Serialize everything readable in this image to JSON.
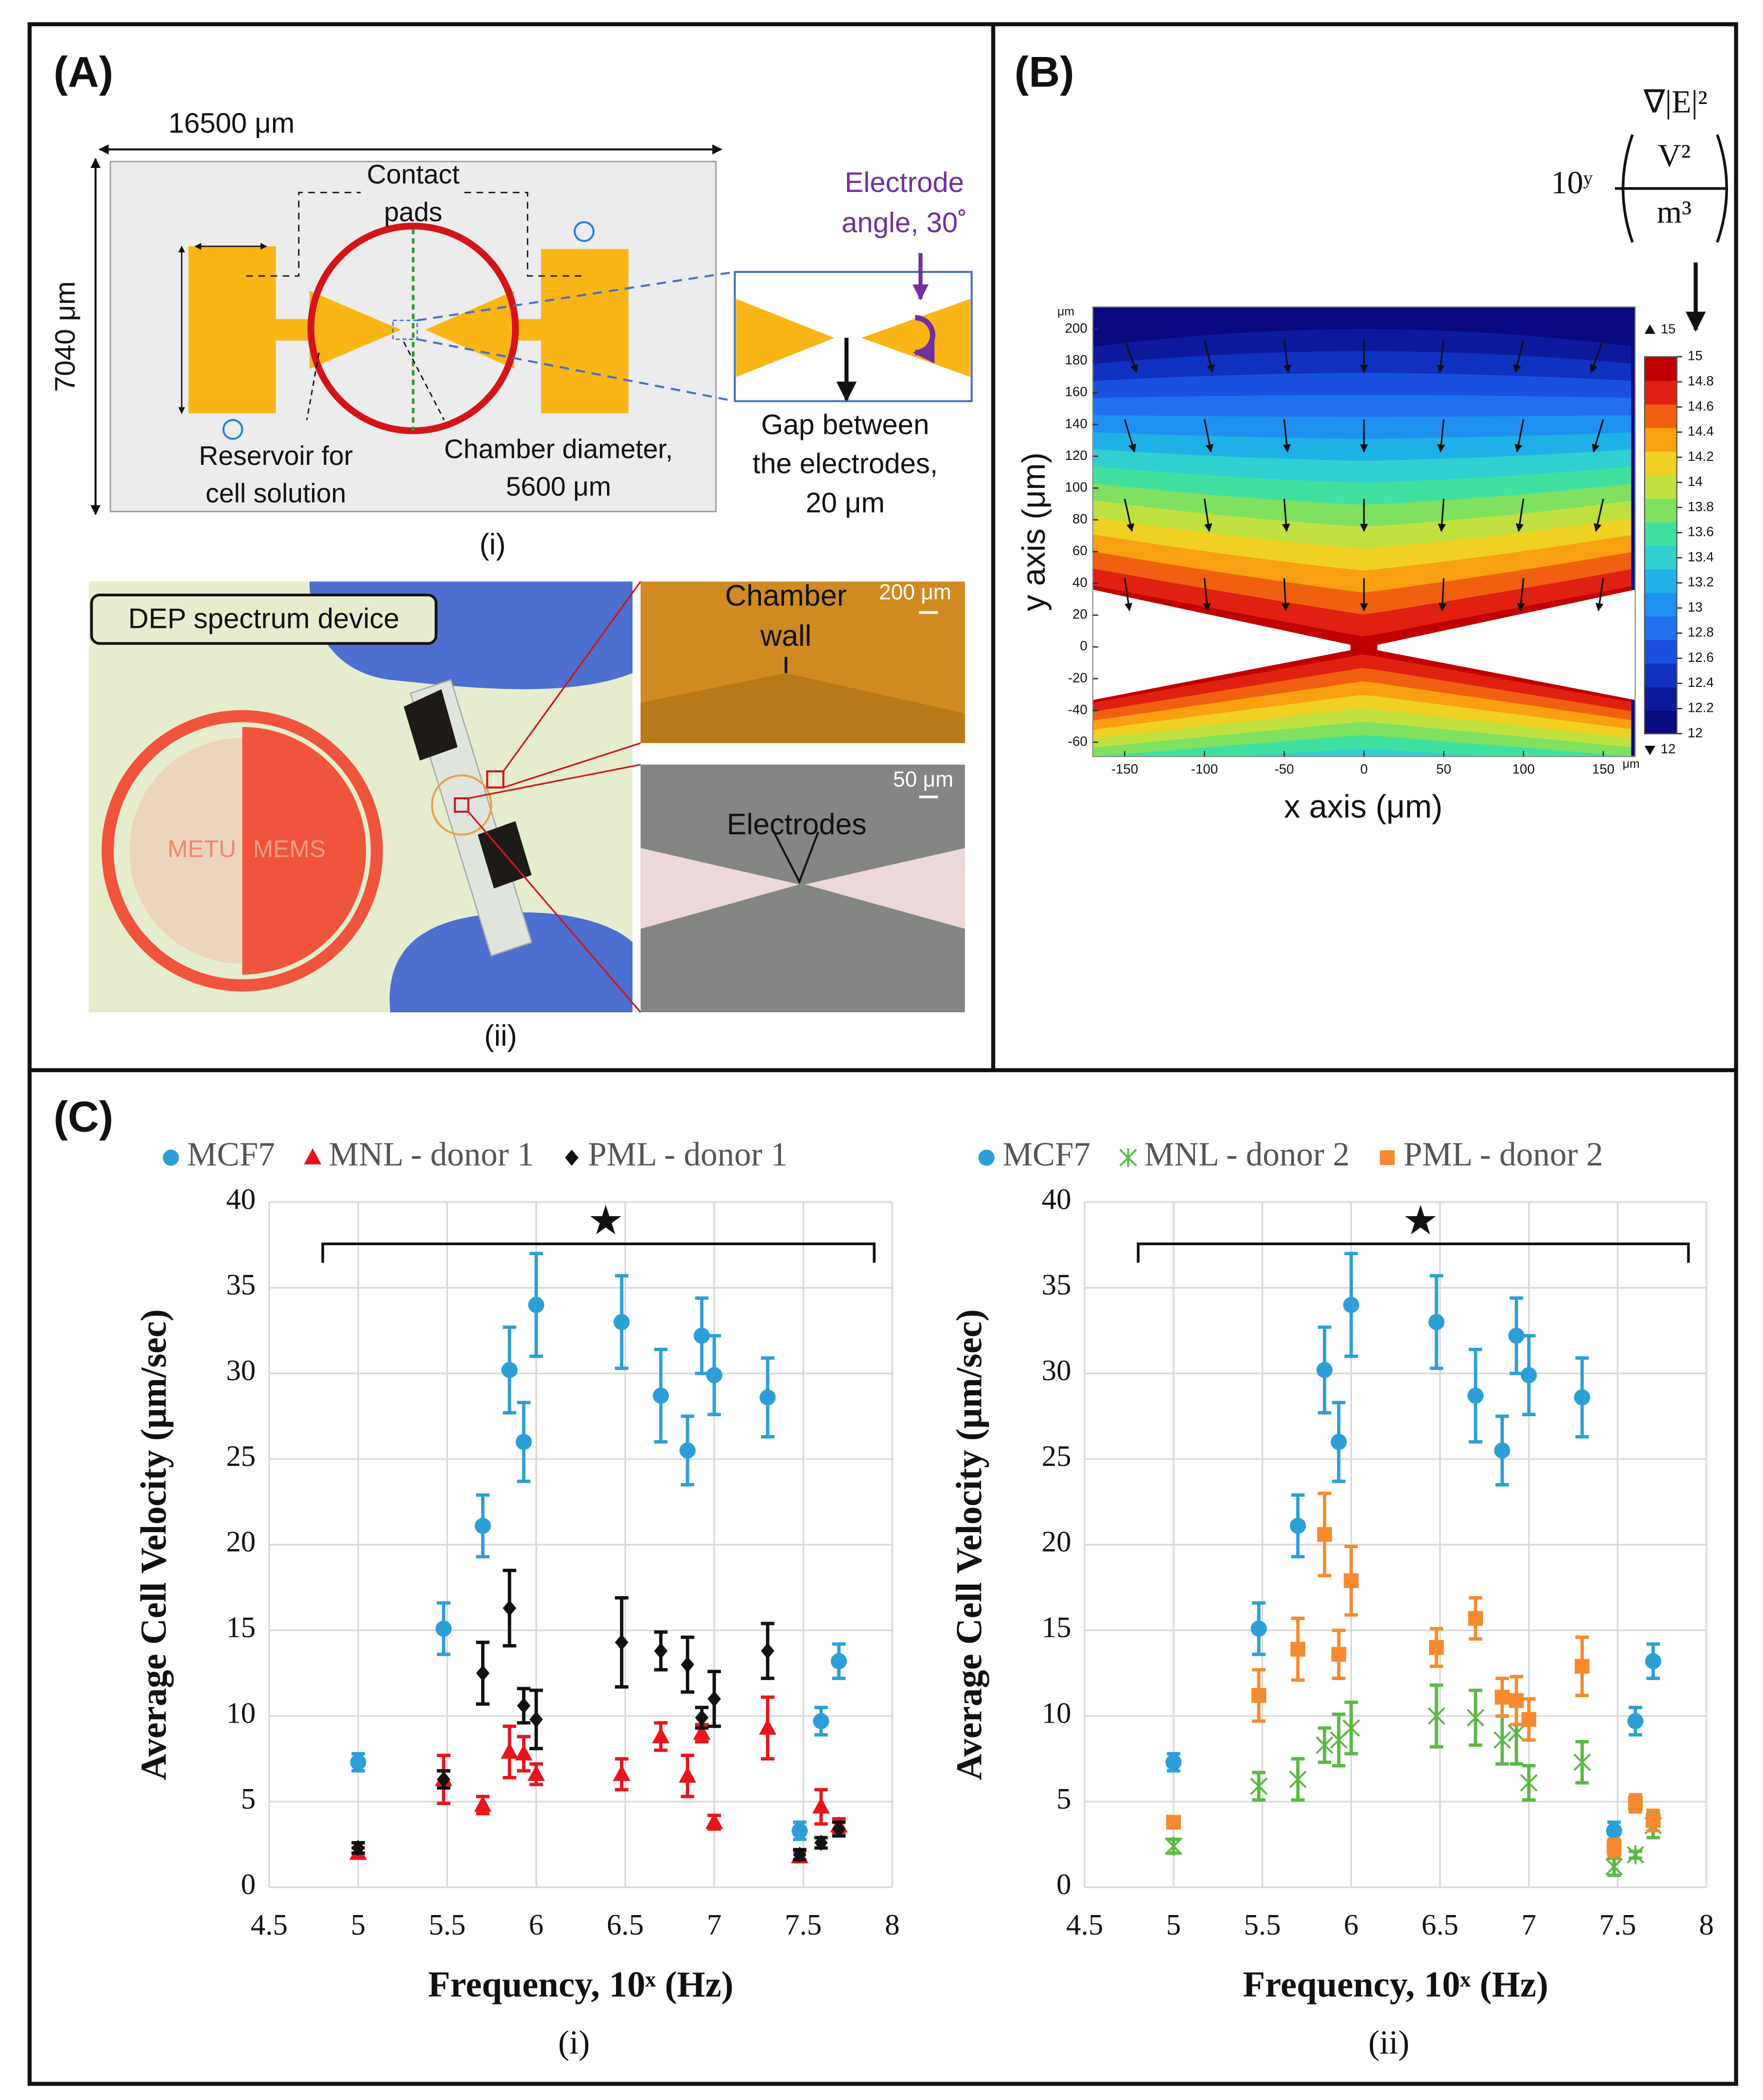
{
  "panel_a": {
    "label": "(A)",
    "width": "16500 μm",
    "height": "7040 μm",
    "contact_pads": [
      "Contact",
      "pads"
    ],
    "electrode_angle": [
      "Electrode",
      "angle, 30˚"
    ],
    "reservoir": [
      "Reservoir for",
      "cell solution"
    ],
    "chamber": [
      "Chamber diameter,",
      "5600 μm"
    ],
    "gap": [
      "Gap between",
      "the electrodes,",
      "20 μm"
    ],
    "sub_i": "(i)",
    "device": "DEP spectrum device",
    "logo": [
      "METU",
      "MEMS"
    ],
    "chamber_wall": [
      "Chamber",
      "wall"
    ],
    "scale_200": "200 μm",
    "scale_50": "50 μm",
    "electrodes": "Electrodes",
    "sub_ii": "(ii)"
  },
  "panel_b": {
    "label": "(B)",
    "colorbar_title": "∇|E|²",
    "colorbar_base": "10ʸ",
    "colorbar_num": "V²",
    "colorbar_den": "m³",
    "xlabel": "x axis (μm)",
    "ylabel": "y axis (μm)",
    "unit": "μm",
    "xlim": [
      -170,
      170
    ],
    "ylim": [
      -69,
      214
    ],
    "xticks": [
      -150,
      -100,
      -50,
      0,
      50,
      100,
      150
    ],
    "yticks": [
      -60,
      -40,
      -20,
      0,
      20,
      40,
      60,
      80,
      100,
      120,
      140,
      160,
      180,
      200
    ],
    "colorbar_ticks": [
      12,
      12.2,
      12.4,
      12.6,
      12.8,
      13,
      13.2,
      13.4,
      13.6,
      13.8,
      14,
      14.2,
      14.4,
      14.6,
      14.8,
      15
    ],
    "colorbar_range": [
      12,
      15
    ],
    "colors": [
      "#0a0a80",
      "#0d1a9e",
      "#1030c0",
      "#1a50e0",
      "#2070f0",
      "#1e90f0",
      "#20b0e8",
      "#30d0d0",
      "#40e0a0",
      "#80e060",
      "#c0e040",
      "#f0d020",
      "#f8a010",
      "#f06010",
      "#e02010",
      "#c00000"
    ]
  },
  "panel_c_label": "(C)",
  "chart_data": [
    {
      "type": "scatter",
      "xlabel": "Frequency, 10ˣ (Hz)",
      "ylabel": "Average Cell Velocity (μm/sec)",
      "subtitle": "(i)",
      "annotation": "★",
      "x": [
        5,
        5.48,
        5.7,
        5.85,
        5.93,
        6,
        6.48,
        6.7,
        6.85,
        6.93,
        7,
        7.3,
        7.48,
        7.6,
        7.7
      ],
      "xlim": [
        4.5,
        8
      ],
      "xticks": [
        4.5,
        5,
        5.5,
        6,
        6.5,
        7,
        7.5,
        8
      ],
      "ylim": [
        0,
        40
      ],
      "yticks": [
        0,
        5,
        10,
        15,
        20,
        25,
        30,
        35,
        40
      ],
      "grid": true,
      "series": [
        {
          "name": "MCF7",
          "color": "#2e9fd6",
          "marker": "circle",
          "values": [
            7.3,
            15.1,
            21.1,
            30.2,
            26.0,
            34.0,
            33.0,
            28.7,
            25.5,
            32.2,
            29.9,
            28.6,
            3.3,
            9.7,
            13.2
          ],
          "errors": [
            0.5,
            1.5,
            1.8,
            2.5,
            2.3,
            3,
            2.7,
            2.7,
            2,
            2.2,
            2.3,
            2.3,
            0.5,
            0.8,
            1
          ]
        },
        {
          "name": "MNL - donor 1",
          "color": "#e8141b",
          "marker": "triangle",
          "values": [
            2.0,
            6.3,
            4.8,
            7.9,
            7.8,
            6.6,
            6.6,
            8.8,
            6.5,
            9.0,
            3.8,
            9.3,
            1.8,
            4.7,
            3.6
          ],
          "errors": [
            0.3,
            1.4,
            0.5,
            1.5,
            1,
            0.6,
            0.9,
            0.8,
            1.2,
            0.5,
            0.4,
            1.8,
            0.3,
            1,
            0.4
          ]
        },
        {
          "name": "PML - donor 1",
          "color": "#111111",
          "marker": "diamond",
          "values": [
            2.3,
            6.3,
            12.5,
            16.3,
            10.6,
            9.8,
            14.3,
            13.8,
            13.0,
            9.9,
            11.0,
            13.8,
            1.9,
            2.6,
            3.4
          ],
          "errors": [
            0.3,
            0.5,
            1.8,
            2.2,
            1,
            1.7,
            2.6,
            1.1,
            1.6,
            0.6,
            1.6,
            1.6,
            0.3,
            0.3,
            0.4
          ]
        }
      ]
    },
    {
      "type": "scatter",
      "xlabel": "Frequency, 10ˣ (Hz)",
      "ylabel": "Average Cell Velocity (μm/sec)",
      "subtitle": "(ii)",
      "annotation": "★",
      "x": [
        5,
        5.48,
        5.7,
        5.85,
        5.93,
        6,
        6.48,
        6.7,
        6.85,
        6.93,
        7,
        7.3,
        7.48,
        7.6,
        7.7
      ],
      "xlim": [
        4.5,
        8
      ],
      "xticks": [
        4.5,
        5,
        5.5,
        6,
        6.5,
        7,
        7.5,
        8
      ],
      "ylim": [
        0,
        40
      ],
      "yticks": [
        0,
        5,
        10,
        15,
        20,
        25,
        30,
        35,
        40
      ],
      "grid": true,
      "series": [
        {
          "name": "MCF7",
          "color": "#2e9fd6",
          "marker": "circle",
          "values": [
            7.3,
            15.1,
            21.1,
            30.2,
            26.0,
            34.0,
            33.0,
            28.7,
            25.5,
            32.2,
            29.9,
            28.6,
            3.3,
            9.7,
            13.2
          ],
          "errors": [
            0.5,
            1.5,
            1.8,
            2.5,
            2.3,
            3,
            2.7,
            2.7,
            2,
            2.2,
            2.3,
            2.3,
            0.5,
            0.8,
            1
          ]
        },
        {
          "name": "MNL - donor 2",
          "color": "#5cb848",
          "marker": "asterisk",
          "values": [
            2.4,
            5.9,
            6.3,
            8.3,
            8.6,
            9.3,
            10.0,
            9.9,
            8.6,
            9.0,
            6.1,
            7.3,
            1.2,
            1.9,
            3.6
          ],
          "errors": [
            0.4,
            0.8,
            1.2,
            1,
            1.5,
            1.5,
            1.8,
            1.6,
            1.4,
            1.8,
            1,
            1.2,
            0.5,
            0.2,
            0.7
          ]
        },
        {
          "name": "PML - donor 2",
          "color": "#f58a2e",
          "marker": "square",
          "values": [
            3.8,
            11.2,
            13.9,
            20.6,
            13.6,
            17.9,
            14.0,
            15.7,
            11.1,
            10.9,
            9.8,
            12.9,
            2.3,
            4.9,
            3.9
          ],
          "errors": [
            0.3,
            1.5,
            1.8,
            2.4,
            1.4,
            2,
            1.1,
            1.2,
            1.1,
            1.4,
            1.2,
            1.7,
            0.5,
            0.5,
            0.6
          ]
        }
      ]
    }
  ]
}
